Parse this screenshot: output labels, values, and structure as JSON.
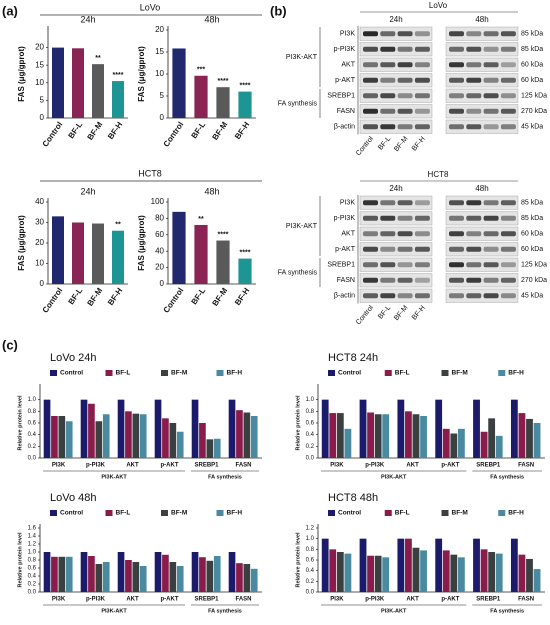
{
  "panel_labels": [
    "(a)",
    "(b)",
    "(c)"
  ],
  "panel_a": {
    "groups": [
      "LoVo",
      "HCT8"
    ]
  },
  "chart_data": [
    {
      "type": "bar",
      "title": "24h",
      "y_label": "FAS (μg/gprot)",
      "categories": [
        "Control",
        "BF-L",
        "BF-M",
        "BF-H"
      ],
      "values": [
        20,
        19.8,
        15.3,
        10.5
      ],
      "sig_labels": [
        null,
        null,
        "**",
        "****"
      ],
      "colors": [
        "#22286e",
        "#8a2454",
        "#5a5a5a",
        "#1e9595"
      ],
      "ylim": [
        0,
        25
      ],
      "yticks": [
        0,
        5,
        10,
        15,
        20
      ]
    },
    {
      "type": "bar",
      "title": "48h",
      "y_label": "FAS (μg/gprot)",
      "categories": [
        "Control",
        "BF-L",
        "BF-M",
        "BF-H"
      ],
      "values": [
        15.8,
        9.6,
        7.0,
        6.0
      ],
      "sig_labels": [
        null,
        "***",
        "****",
        "****"
      ],
      "colors": [
        "#22286e",
        "#8a2454",
        "#5a5a5a",
        "#1e9595"
      ],
      "ylim": [
        0,
        20
      ],
      "yticks": [
        0,
        5,
        10,
        15,
        20
      ]
    },
    {
      "type": "bar",
      "title": "24h",
      "y_label": "FAS (μg/gprot)",
      "categories": [
        "Control",
        "BF-L",
        "BF-M",
        "BF-H"
      ],
      "values": [
        33,
        30,
        29.5,
        26
      ],
      "sig_labels": [
        null,
        null,
        null,
        "**"
      ],
      "colors": [
        "#22286e",
        "#8a2454",
        "#5a5a5a",
        "#1e9595"
      ],
      "ylim": [
        0,
        40
      ],
      "yticks": [
        0,
        10,
        20,
        30,
        40
      ]
    },
    {
      "type": "bar",
      "title": "48h",
      "y_label": "FAS (μg/gprot)",
      "categories": [
        "Control",
        "BF-L",
        "BF-M",
        "BF-H"
      ],
      "values": [
        88,
        72,
        53,
        31
      ],
      "sig_labels": [
        null,
        "**",
        "****",
        "****"
      ],
      "colors": [
        "#22286e",
        "#8a2454",
        "#5a5a5a",
        "#1e9595"
      ],
      "ylim": [
        0,
        100
      ],
      "yticks": [
        0,
        20,
        40,
        60,
        80,
        100
      ]
    },
    {
      "type": "grouped_bar",
      "title": "LoVo 24h",
      "y_label": "Relative protein level",
      "categories": [
        "PI3K",
        "p-PI3K",
        "AKT",
        "p-AKT",
        "SREBP1",
        "FASN"
      ],
      "groups": [
        {
          "name": "PI3K-AKT",
          "categories": [
            "PI3K",
            "p-PI3K",
            "AKT",
            "p-AKT"
          ]
        },
        {
          "name": "FA synthesis",
          "categories": [
            "SREBP1",
            "FASN"
          ]
        }
      ],
      "series": [
        {
          "name": "Control",
          "color": "#1b1a6b",
          "values": [
            1,
            1,
            1,
            1,
            1,
            1
          ]
        },
        {
          "name": "BF-L",
          "color": "#8a1c4b",
          "values": [
            0.72,
            0.93,
            0.8,
            0.68,
            0.6,
            0.82
          ]
        },
        {
          "name": "BF-M",
          "color": "#3a3f3f",
          "values": [
            0.72,
            0.63,
            0.76,
            0.6,
            0.32,
            0.78
          ]
        },
        {
          "name": "BF-H",
          "color": "#4a8aa0",
          "values": [
            0.63,
            0.75,
            0.75,
            0.45,
            0.33,
            0.72
          ]
        }
      ],
      "ylim": [
        0,
        1.2
      ],
      "yticks": [
        {
          "value": 0,
          "label": "0.0"
        },
        {
          "value": 0.2,
          "label": "0.2"
        },
        {
          "value": 0.4,
          "label": "0.4"
        },
        {
          "value": 0.6,
          "label": "0.6"
        },
        {
          "value": 0.8,
          "label": "0.8"
        },
        {
          "value": 1,
          "label": "1.0"
        }
      ]
    },
    {
      "type": "grouped_bar",
      "title": "HCT8 24h",
      "y_label": "Relative protein level",
      "categories": [
        "PI3K",
        "p-PI3K",
        "AKT",
        "p-AKT",
        "SREBP1",
        "FASN"
      ],
      "groups": [
        {
          "name": "PI3K-AKT",
          "categories": [
            "PI3K",
            "p-PI3K",
            "AKT",
            "p-AKT"
          ]
        },
        {
          "name": "FA synthesis",
          "categories": [
            "SREBP1",
            "FASN"
          ]
        }
      ],
      "series": [
        {
          "name": "Control",
          "color": "#1b1a6b",
          "values": [
            1,
            1,
            1,
            1,
            1,
            1
          ]
        },
        {
          "name": "BF-L",
          "color": "#8a1c4b",
          "values": [
            0.77,
            0.78,
            0.8,
            0.5,
            0.45,
            0.77
          ]
        },
        {
          "name": "BF-M",
          "color": "#3a3f3f",
          "values": [
            0.77,
            0.75,
            0.75,
            0.42,
            0.68,
            0.67
          ]
        },
        {
          "name": "BF-H",
          "color": "#4a8aa0",
          "values": [
            0.5,
            0.75,
            0.72,
            0.5,
            0.38,
            0.6
          ]
        }
      ],
      "ylim": [
        0,
        1.2
      ],
      "yticks": [
        {
          "value": 0,
          "label": "0.0"
        },
        {
          "value": 0.2,
          "label": "0.2"
        },
        {
          "value": 0.4,
          "label": "0.4"
        },
        {
          "value": 0.6,
          "label": "0.6"
        },
        {
          "value": 0.8,
          "label": "0.8"
        },
        {
          "value": 1,
          "label": "1.0"
        }
      ]
    },
    {
      "type": "grouped_bar",
      "title": "LoVo 48h",
      "y_label": "Relative protein level",
      "categories": [
        "PI3K",
        "p-PI3K",
        "AKT",
        "p-AKT",
        "SREBP1",
        "FASN"
      ],
      "groups": [
        {
          "name": "PI3K-AKT",
          "categories": [
            "PI3K",
            "p-PI3K",
            "AKT",
            "p-AKT"
          ]
        },
        {
          "name": "FA synthesis",
          "categories": [
            "SREBP1",
            "FASN"
          ]
        }
      ],
      "series": [
        {
          "name": "Control",
          "color": "#1b1a6b",
          "values": [
            1,
            1,
            1,
            1,
            1,
            1
          ]
        },
        {
          "name": "BF-L",
          "color": "#8a1c4b",
          "values": [
            0.88,
            0.9,
            0.8,
            0.93,
            0.87,
            0.72
          ]
        },
        {
          "name": "BF-M",
          "color": "#3a3f3f",
          "values": [
            0.88,
            0.7,
            0.75,
            0.75,
            0.78,
            0.7
          ]
        },
        {
          "name": "BF-H",
          "color": "#4a8aa0",
          "values": [
            0.88,
            0.75,
            0.65,
            0.65,
            0.9,
            0.58
          ]
        }
      ],
      "ylim": [
        0,
        1.6
      ],
      "yticks": [
        {
          "value": 0,
          "label": "0.0"
        },
        {
          "value": 0.2,
          "label": "0.2"
        },
        {
          "value": 0.4,
          "label": "0.4"
        },
        {
          "value": 0.6,
          "label": "0.6"
        },
        {
          "value": 0.8,
          "label": "0.8"
        },
        {
          "value": 1,
          "label": "1.0"
        },
        {
          "value": 1.2,
          "label": "1.2"
        },
        {
          "value": 1.4,
          "label": "1.4"
        },
        {
          "value": 1.6,
          "label": "1.6"
        }
      ]
    },
    {
      "type": "grouped_bar",
      "title": "HCT8 48h",
      "y_label": "Relative protein level",
      "categories": [
        "PI3K",
        "p-PI3K",
        "AKT",
        "p-AKT",
        "SREBP1",
        "FASN"
      ],
      "groups": [
        {
          "name": "PI3K-AKT",
          "categories": [
            "PI3K",
            "p-PI3K",
            "AKT",
            "p-AKT"
          ]
        },
        {
          "name": "FA synthesis",
          "categories": [
            "SREBP1",
            "FASN"
          ]
        }
      ],
      "series": [
        {
          "name": "Control",
          "color": "#1b1a6b",
          "values": [
            1,
            1,
            1,
            1,
            1,
            1
          ]
        },
        {
          "name": "BF-L",
          "color": "#8a1c4b",
          "values": [
            0.8,
            0.68,
            1.0,
            0.78,
            0.8,
            0.7
          ]
        },
        {
          "name": "BF-M",
          "color": "#3a3f3f",
          "values": [
            0.75,
            0.68,
            0.83,
            0.7,
            0.75,
            0.62
          ]
        },
        {
          "name": "BF-H",
          "color": "#4a8aa0",
          "values": [
            0.72,
            0.65,
            0.78,
            0.65,
            0.72,
            0.43
          ]
        }
      ],
      "ylim": [
        0,
        1.2
      ],
      "yticks": [
        {
          "value": 0,
          "label": "0.0"
        },
        {
          "value": 0.2,
          "label": "0.2"
        },
        {
          "value": 0.4,
          "label": "0.4"
        },
        {
          "value": 0.6,
          "label": "0.6"
        },
        {
          "value": 0.8,
          "label": "0.8"
        },
        {
          "value": 1,
          "label": "1.0"
        },
        {
          "value": 1.2,
          "label": "1.2"
        }
      ]
    }
  ],
  "blots": [
    {
      "cell": "LoVo",
      "times": [
        "24h",
        "48h"
      ],
      "lanes": [
        "Control",
        "BF-L",
        "BF-M",
        "BF-H"
      ],
      "rows": [
        {
          "name": "PI3K",
          "size": "85 kDa"
        },
        {
          "name": "p-PI3K",
          "size": "85 kDa"
        },
        {
          "name": "AKT",
          "size": "60 kDa"
        },
        {
          "name": "p-AKT",
          "size": "60 kDa"
        },
        {
          "name": "SREBP1",
          "size": "125 kDa"
        },
        {
          "name": "FASN",
          "size": "270 kDa"
        },
        {
          "name": "β-actin",
          "size": "45 kDa"
        }
      ],
      "groups": [
        {
          "name": "PI3K-AKT",
          "rows": [
            "PI3K",
            "p-PI3K",
            "AKT",
            "p-AKT"
          ]
        },
        {
          "name": "FA synthesis",
          "rows": [
            "SREBP1",
            "FASN"
          ]
        }
      ]
    },
    {
      "cell": "HCT8",
      "times": [
        "24h",
        "48h"
      ],
      "lanes": [
        "Control",
        "BF-L",
        "BF-M",
        "BF-H"
      ],
      "rows": [
        {
          "name": "PI3K",
          "size": "85 kDa"
        },
        {
          "name": "p-PI3K",
          "size": "85 kDa"
        },
        {
          "name": "AKT",
          "size": "60 kDa"
        },
        {
          "name": "p-AKT",
          "size": "60 kDa"
        },
        {
          "name": "SREBP1",
          "size": "125 kDa"
        },
        {
          "name": "FASN",
          "size": "270 kDa"
        },
        {
          "name": "β-actin",
          "size": "45 kDa"
        }
      ],
      "groups": [
        {
          "name": "PI3K-AKT",
          "rows": [
            "PI3K",
            "p-PI3K",
            "AKT",
            "p-AKT"
          ]
        },
        {
          "name": "FA synthesis",
          "rows": [
            "SREBP1",
            "FASN"
          ]
        }
      ]
    }
  ]
}
